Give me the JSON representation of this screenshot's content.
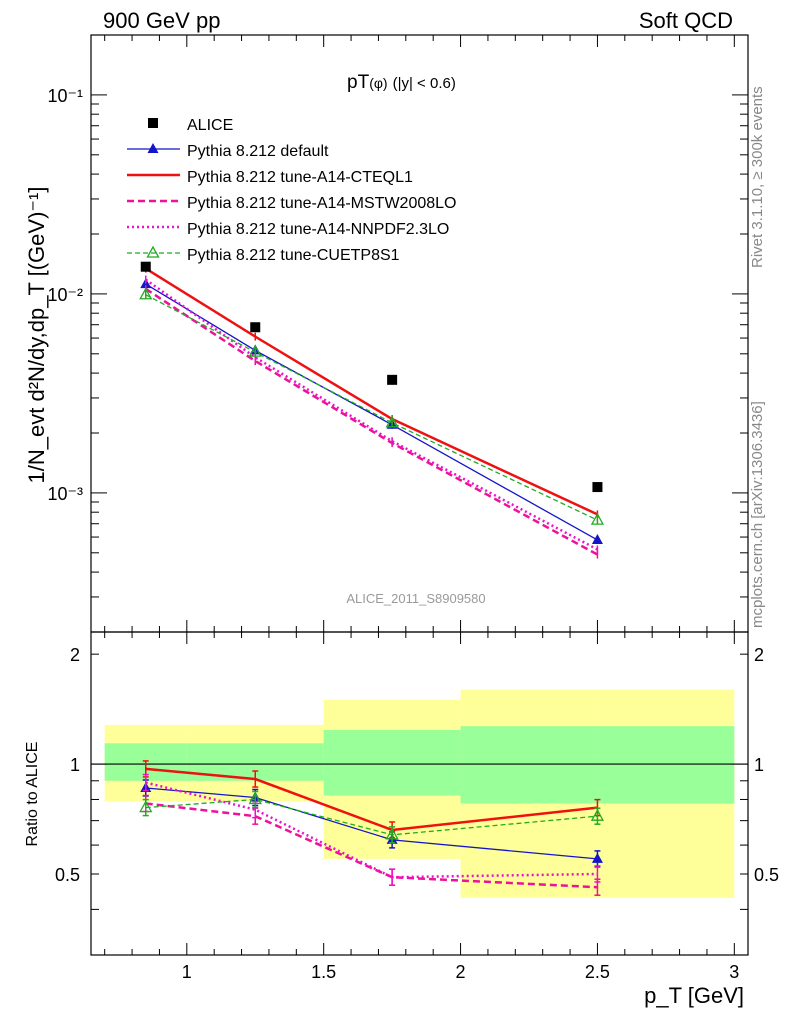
{
  "header": {
    "left": "900 GeV pp",
    "right": "Soft QCD"
  },
  "side": {
    "rivet": "Rivet 3.1.10, ≥ 300k events",
    "mcplots": "mcplots.cern.ch [arXiv:1306.3436]"
  },
  "analysis_id": "ALICE_2011_S8909580",
  "plot_title": {
    "main": "pT",
    "sub": "(φ)",
    "cut": "(|y| < 0.6)"
  },
  "ylabel_top": "1/N_evt d²N/dy,dp_T [(GeV)⁻¹]",
  "ylabel_bottom": "Ratio to ALICE",
  "xlabel": "p_T [GeV]",
  "legend": [
    "ALICE",
    "Pythia 8.212 default",
    "Pythia 8.212 tune-A14-CTEQL1",
    "Pythia 8.212 tune-A14-MSTW2008LO",
    "Pythia 8.212 tune-A14-NNPDF2.3LO",
    "Pythia 8.212 tune-CUETP8S1"
  ],
  "colors": {
    "data": "#000000",
    "default": "#1515c8",
    "cteql1": "#ee1111",
    "mstw": "#ee1199",
    "nnpdf": "#ee11cc",
    "cuetp8s1": "#22aa22",
    "band_outer": "#ffff99",
    "band_inner": "#99ff99"
  },
  "chart_data": [
    {
      "type": "scatter",
      "panel": "main",
      "x_scale": "linear",
      "y_scale": "log",
      "xlim": [
        0.65,
        3.05
      ],
      "ylim": [
        0.0002,
        0.2
      ],
      "y_tick_labels": [
        "10⁻³",
        "10⁻²",
        "10⁻¹"
      ],
      "x": [
        0.85,
        1.25,
        1.75,
        2.5
      ],
      "series": [
        {
          "name": "ALICE",
          "values": [
            0.0137,
            0.0068,
            0.0037,
            0.00107
          ]
        },
        {
          "name": "Pythia 8.212 default",
          "values": [
            0.0112,
            0.0052,
            0.0022,
            0.00058
          ]
        },
        {
          "name": "Pythia 8.212 tune-A14-CTEQL1",
          "values": [
            0.0134,
            0.0061,
            0.00235,
            0.00078
          ]
        },
        {
          "name": "Pythia 8.212 tune-A14-MSTW2008LO",
          "values": [
            0.0106,
            0.0046,
            0.00178,
            0.00049
          ]
        },
        {
          "name": "Pythia 8.212 tune-A14-NNPDF2.3LO",
          "values": [
            0.0118,
            0.0048,
            0.00182,
            0.00052
          ]
        },
        {
          "name": "Pythia 8.212 tune-CUETP8S1",
          "values": [
            0.0099,
            0.0051,
            0.00225,
            0.00073
          ]
        }
      ]
    },
    {
      "type": "line",
      "panel": "ratio",
      "xlim": [
        0.65,
        3.05
      ],
      "ylim": [
        0.3,
        2.3
      ],
      "x_tick_labels": [
        "1",
        "1.5",
        "2",
        "2.5",
        "3"
      ],
      "y_tick_labels": [
        "0.5",
        "1",
        "2"
      ],
      "x": [
        0.85,
        1.25,
        1.75,
        2.5
      ],
      "uncertainty_bins": [
        {
          "x_range": [
            0.7,
            1.0
          ],
          "inner": [
            0.9,
            1.14
          ],
          "outer": [
            0.79,
            1.28
          ]
        },
        {
          "x_range": [
            1.0,
            1.5
          ],
          "inner": [
            0.9,
            1.14
          ],
          "outer": [
            0.79,
            1.28
          ]
        },
        {
          "x_range": [
            1.5,
            2.0
          ],
          "inner": [
            0.82,
            1.24
          ],
          "outer": [
            0.55,
            1.5
          ]
        },
        {
          "x_range": [
            2.0,
            2.5
          ],
          "inner": [
            0.78,
            1.27
          ],
          "outer": [
            0.43,
            1.6
          ]
        },
        {
          "x_range": [
            2.5,
            3.0
          ],
          "inner": [
            0.78,
            1.27
          ],
          "outer": [
            0.43,
            1.6
          ]
        }
      ],
      "series": [
        {
          "name": "Pythia 8.212 default",
          "values": [
            0.86,
            0.81,
            0.62,
            0.55
          ]
        },
        {
          "name": "Pythia 8.212 tune-A14-CTEQL1",
          "values": [
            0.97,
            0.91,
            0.66,
            0.76
          ]
        },
        {
          "name": "Pythia 8.212 tune-A14-MSTW2008LO",
          "values": [
            0.78,
            0.72,
            0.49,
            0.46
          ]
        },
        {
          "name": "Pythia 8.212 tune-A14-NNPDF2.3LO",
          "values": [
            0.89,
            0.75,
            0.49,
            0.5
          ]
        },
        {
          "name": "Pythia 8.212 tune-CUETP8S1",
          "values": [
            0.76,
            0.8,
            0.64,
            0.72
          ]
        }
      ]
    }
  ]
}
